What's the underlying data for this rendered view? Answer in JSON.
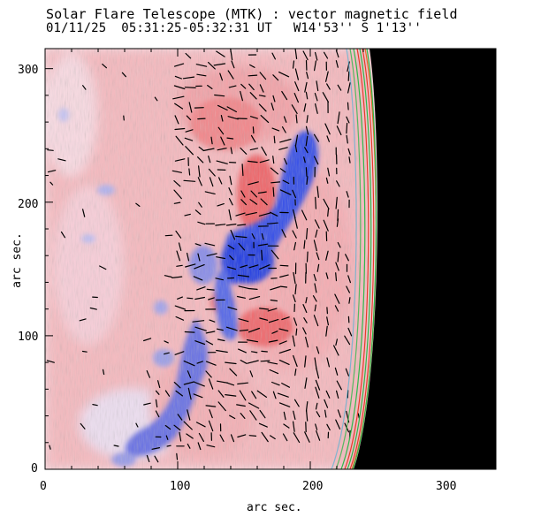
{
  "header": {
    "title": "Solar Flare Telescope (MTK) : vector magnetic field",
    "date": "01/11/25",
    "time_range": "05:31:25-05:32:31 UT",
    "position": "W14'53'' S 1'13''"
  },
  "axes": {
    "xlabel": "arc sec.",
    "ylabel": "arc sec.",
    "xlim": [
      0,
      340
    ],
    "ylim": [
      0,
      315
    ],
    "xticks": [
      "0",
      "100",
      "200",
      "300"
    ],
    "yticks": [
      "0",
      "100",
      "200",
      "300"
    ]
  },
  "colors": {
    "positive_polarity": "#f08a8a",
    "negative_polarity": "#4c5ee8",
    "background_field": "#f7e4ea",
    "limb_contours": "#2fb84a",
    "limb_contours_red": "#e83a2a",
    "vectors": "#000000",
    "off_disk": "#000000"
  }
}
